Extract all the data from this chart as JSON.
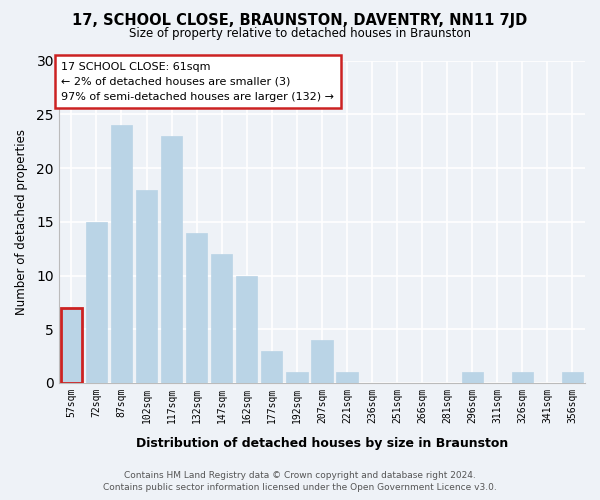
{
  "title": "17, SCHOOL CLOSE, BRAUNSTON, DAVENTRY, NN11 7JD",
  "subtitle": "Size of property relative to detached houses in Braunston",
  "xlabel": "Distribution of detached houses by size in Braunston",
  "ylabel": "Number of detached properties",
  "bar_labels": [
    "57sqm",
    "72sqm",
    "87sqm",
    "102sqm",
    "117sqm",
    "132sqm",
    "147sqm",
    "162sqm",
    "177sqm",
    "192sqm",
    "207sqm",
    "221sqm",
    "236sqm",
    "251sqm",
    "266sqm",
    "281sqm",
    "296sqm",
    "311sqm",
    "326sqm",
    "341sqm",
    "356sqm"
  ],
  "bar_values": [
    7,
    15,
    24,
    18,
    23,
    14,
    12,
    10,
    3,
    1,
    4,
    1,
    0,
    0,
    0,
    0,
    1,
    0,
    1,
    0,
    1
  ],
  "highlight_bar_index": 0,
  "bar_color": "#bad4e6",
  "highlight_color": "#cc2222",
  "ylim": [
    0,
    30
  ],
  "yticks": [
    0,
    5,
    10,
    15,
    20,
    25,
    30
  ],
  "annotation_title": "17 SCHOOL CLOSE: 61sqm",
  "annotation_line1": "← 2% of detached houses are smaller (3)",
  "annotation_line2": "97% of semi-detached houses are larger (132) →",
  "annotation_box_color": "#ffffff",
  "annotation_box_edge_color": "#cc2222",
  "footer_line1": "Contains HM Land Registry data © Crown copyright and database right 2024.",
  "footer_line2": "Contains public sector information licensed under the Open Government Licence v3.0.",
  "background_color": "#eef2f7"
}
